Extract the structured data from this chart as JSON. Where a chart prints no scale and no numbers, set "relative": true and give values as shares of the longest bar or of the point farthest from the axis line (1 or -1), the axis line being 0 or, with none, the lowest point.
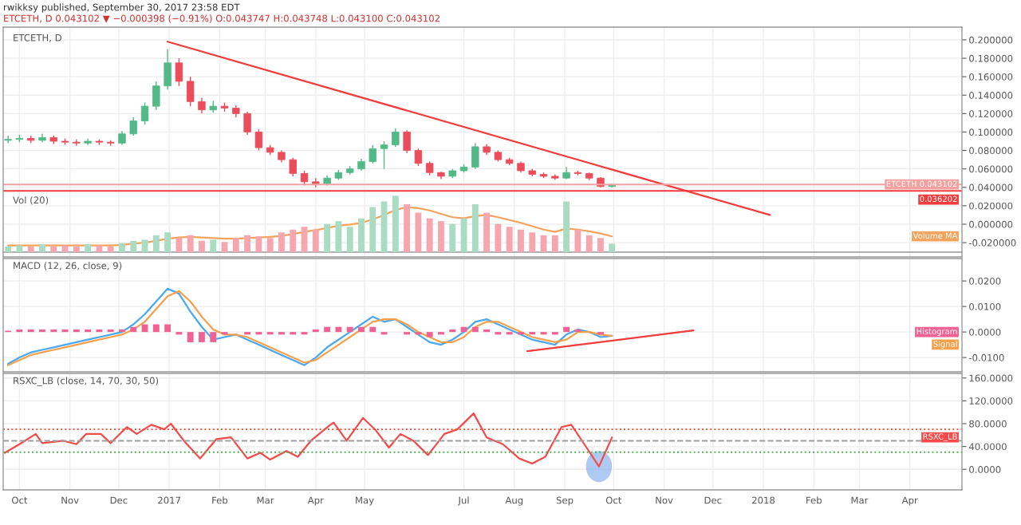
{
  "chart_data": [
    {
      "type": "candlestick",
      "title": "ETCETH, D",
      "annotations": [
        "rwikksy published, September 30, 2017 23:58 EDT",
        "ETCETH, D 0.043102 ▼ −0.000398 (−0.91%) O:0.043747 H:0.043748 L:0.043100 C:0.043102"
      ],
      "x": [
        "2016-09-24",
        "2016-10-01",
        "2016-10-08",
        "2016-10-15",
        "2016-10-22",
        "2016-10-29",
        "2016-11-05",
        "2016-11-12",
        "2016-11-19",
        "2016-11-26",
        "2016-12-03",
        "2016-12-10",
        "2016-12-17",
        "2016-12-24",
        "2016-12-31",
        "2017-01-07",
        "2017-01-14",
        "2017-01-21",
        "2017-01-28",
        "2017-02-04",
        "2017-02-11",
        "2017-02-18",
        "2017-02-25",
        "2017-03-04",
        "2017-03-11",
        "2017-03-18",
        "2017-03-25",
        "2017-04-01",
        "2017-04-08",
        "2017-04-15",
        "2017-04-22",
        "2017-04-29",
        "2017-05-06",
        "2017-05-13",
        "2017-05-20",
        "2017-05-27",
        "2017-06-03",
        "2017-06-10",
        "2017-06-17",
        "2017-06-24",
        "2017-07-01",
        "2017-07-08",
        "2017-07-15",
        "2017-07-22",
        "2017-07-29",
        "2017-08-05",
        "2017-08-12",
        "2017-08-19",
        "2017-08-26",
        "2017-09-02",
        "2017-09-09",
        "2017-09-16",
        "2017-09-23",
        "2017-09-30"
      ],
      "ohlc": [
        [
          0.091,
          0.096,
          0.088,
          0.092
        ],
        [
          0.092,
          0.097,
          0.089,
          0.093
        ],
        [
          0.093,
          0.096,
          0.088,
          0.091
        ],
        [
          0.091,
          0.098,
          0.089,
          0.094
        ],
        [
          0.094,
          0.096,
          0.087,
          0.09
        ],
        [
          0.09,
          0.093,
          0.086,
          0.089
        ],
        [
          0.089,
          0.092,
          0.085,
          0.088
        ],
        [
          0.088,
          0.093,
          0.086,
          0.09
        ],
        [
          0.09,
          0.092,
          0.086,
          0.089
        ],
        [
          0.089,
          0.091,
          0.085,
          0.088
        ],
        [
          0.088,
          0.101,
          0.086,
          0.098
        ],
        [
          0.098,
          0.116,
          0.096,
          0.112
        ],
        [
          0.112,
          0.132,
          0.108,
          0.128
        ],
        [
          0.128,
          0.155,
          0.124,
          0.15
        ],
        [
          0.15,
          0.19,
          0.146,
          0.175
        ],
        [
          0.175,
          0.18,
          0.15,
          0.155
        ],
        [
          0.155,
          0.16,
          0.128,
          0.133
        ],
        [
          0.133,
          0.137,
          0.12,
          0.124
        ],
        [
          0.124,
          0.134,
          0.121,
          0.128
        ],
        [
          0.128,
          0.132,
          0.122,
          0.126
        ],
        [
          0.126,
          0.129,
          0.116,
          0.12
        ],
        [
          0.12,
          0.122,
          0.097,
          0.1
        ],
        [
          0.1,
          0.103,
          0.08,
          0.083
        ],
        [
          0.083,
          0.086,
          0.075,
          0.078
        ],
        [
          0.078,
          0.08,
          0.067,
          0.07
        ],
        [
          0.07,
          0.072,
          0.052,
          0.055
        ],
        [
          0.055,
          0.058,
          0.042,
          0.046
        ],
        [
          0.046,
          0.05,
          0.04,
          0.044
        ],
        [
          0.044,
          0.053,
          0.042,
          0.05
        ],
        [
          0.05,
          0.059,
          0.048,
          0.056
        ],
        [
          0.056,
          0.063,
          0.054,
          0.06
        ],
        [
          0.06,
          0.071,
          0.058,
          0.068
        ],
        [
          0.068,
          0.086,
          0.066,
          0.082
        ],
        [
          0.082,
          0.09,
          0.06,
          0.086
        ],
        [
          0.086,
          0.104,
          0.084,
          0.1
        ],
        [
          0.1,
          0.102,
          0.077,
          0.08
        ],
        [
          0.08,
          0.082,
          0.063,
          0.066
        ],
        [
          0.066,
          0.068,
          0.053,
          0.056
        ],
        [
          0.056,
          0.057,
          0.049,
          0.052
        ],
        [
          0.052,
          0.06,
          0.05,
          0.058
        ],
        [
          0.058,
          0.065,
          0.056,
          0.062
        ],
        [
          0.062,
          0.088,
          0.06,
          0.084
        ],
        [
          0.084,
          0.087,
          0.075,
          0.078
        ],
        [
          0.078,
          0.08,
          0.068,
          0.07
        ],
        [
          0.07,
          0.072,
          0.064,
          0.066
        ],
        [
          0.066,
          0.068,
          0.056,
          0.058
        ],
        [
          0.058,
          0.06,
          0.052,
          0.054
        ],
        [
          0.054,
          0.056,
          0.05,
          0.052
        ],
        [
          0.052,
          0.054,
          0.048,
          0.05
        ],
        [
          0.05,
          0.062,
          0.049,
          0.056
        ],
        [
          0.056,
          0.058,
          0.053,
          0.055
        ],
        [
          0.055,
          0.056,
          0.048,
          0.05
        ],
        [
          0.05,
          0.051,
          0.04,
          0.041
        ],
        [
          0.041,
          0.044,
          0.04,
          0.0431
        ]
      ],
      "colors": [
        "#53b987",
        "#53b987",
        "#eb4d5c",
        "#53b987",
        "#eb4d5c",
        "#eb4d5c",
        "#eb4d5c",
        "#53b987",
        "#eb4d5c",
        "#eb4d5c",
        "#53b987",
        "#53b987",
        "#53b987",
        "#53b987",
        "#53b987",
        "#eb4d5c",
        "#eb4d5c",
        "#eb4d5c",
        "#53b987",
        "#eb4d5c",
        "#eb4d5c",
        "#eb4d5c",
        "#eb4d5c",
        "#eb4d5c",
        "#eb4d5c",
        "#eb4d5c",
        "#eb4d5c",
        "#eb4d5c",
        "#53b987",
        "#53b987",
        "#53b987",
        "#53b987",
        "#53b987",
        "#53b987",
        "#53b987",
        "#eb4d5c",
        "#eb4d5c",
        "#eb4d5c",
        "#eb4d5c",
        "#53b987",
        "#53b987",
        "#53b987",
        "#eb4d5c",
        "#eb4d5c",
        "#eb4d5c",
        "#eb4d5c",
        "#eb4d5c",
        "#eb4d5c",
        "#eb4d5c",
        "#53b987",
        "#eb4d5c",
        "#eb4d5c",
        "#eb4d5c",
        "#53b987"
      ],
      "series": [
        {
          "type": "line",
          "color": "#f23c3c",
          "x": [
            "2016-12-31",
            "2018-01-05"
          ],
          "values": [
            0.198,
            0.01
          ]
        }
      ],
      "ref_lines": [
        {
          "axis": "y",
          "value": 0.043102,
          "label": "ETCETH 0.043102",
          "color": "#f4a0a0",
          "line_style": "solid"
        },
        {
          "axis": "y",
          "value": 0.036202,
          "label": "0.036202",
          "color": "#f23c3c",
          "line_style": "solid"
        }
      ],
      "xlim": [
        "2016-09-21",
        "2018-05-03"
      ],
      "ylim": [
        -0.0355,
        0.2138
      ],
      "yticks": [
        {
          "value": 0.2,
          "label": "0.200000"
        },
        {
          "value": 0.18,
          "label": "0.180000"
        },
        {
          "value": 0.16,
          "label": "0.160000"
        },
        {
          "value": 0.14,
          "label": "0.140000"
        },
        {
          "value": 0.12,
          "label": "0.120000"
        },
        {
          "value": 0.1,
          "label": "0.100000"
        },
        {
          "value": 0.08,
          "label": "0.080000"
        },
        {
          "value": 0.06,
          "label": "0.060000"
        },
        {
          "value": 0.04,
          "label": "0.040000"
        },
        {
          "value": 0.02,
          "label": "0.020000"
        },
        {
          "value": 0,
          "label": "0.000000"
        },
        {
          "value": -0.02,
          "label": "-0.020000"
        }
      ],
      "grid": true,
      "tick_labels": "y"
    },
    {
      "type": "bar",
      "title": "Vol (20)",
      "relative": true,
      "x": [
        "2016-09-24",
        "2016-10-01",
        "2016-10-08",
        "2016-10-15",
        "2016-10-22",
        "2016-10-29",
        "2016-11-05",
        "2016-11-12",
        "2016-11-19",
        "2016-11-26",
        "2016-12-03",
        "2016-12-10",
        "2016-12-17",
        "2016-12-24",
        "2016-12-31",
        "2017-01-07",
        "2017-01-14",
        "2017-01-21",
        "2017-01-28",
        "2017-02-04",
        "2017-02-11",
        "2017-02-18",
        "2017-02-25",
        "2017-03-04",
        "2017-03-11",
        "2017-03-18",
        "2017-03-25",
        "2017-04-01",
        "2017-04-08",
        "2017-04-15",
        "2017-04-22",
        "2017-04-29",
        "2017-05-06",
        "2017-05-13",
        "2017-05-20",
        "2017-05-27",
        "2017-06-03",
        "2017-06-10",
        "2017-06-17",
        "2017-06-24",
        "2017-07-01",
        "2017-07-08",
        "2017-07-15",
        "2017-07-22",
        "2017-07-29",
        "2017-08-05",
        "2017-08-12",
        "2017-08-19",
        "2017-08-26",
        "2017-09-02",
        "2017-09-09",
        "2017-09-16",
        "2017-09-23",
        "2017-09-30"
      ],
      "series": [
        {
          "type": "bar",
          "colors": [
            "#a9dcc3",
            "#a9dcc3",
            "#f5a6ae",
            "#a9dcc3",
            "#f5a6ae",
            "#f5a6ae",
            "#f5a6ae",
            "#a9dcc3",
            "#f5a6ae",
            "#f5a6ae",
            "#a9dcc3",
            "#a9dcc3",
            "#a9dcc3",
            "#a9dcc3",
            "#a9dcc3",
            "#f5a6ae",
            "#f5a6ae",
            "#f5a6ae",
            "#a9dcc3",
            "#f5a6ae",
            "#f5a6ae",
            "#f5a6ae",
            "#f5a6ae",
            "#f5a6ae",
            "#f5a6ae",
            "#f5a6ae",
            "#f5a6ae",
            "#f5a6ae",
            "#a9dcc3",
            "#a9dcc3",
            "#a9dcc3",
            "#a9dcc3",
            "#a9dcc3",
            "#a9dcc3",
            "#a9dcc3",
            "#f5a6ae",
            "#f5a6ae",
            "#f5a6ae",
            "#f5a6ae",
            "#a9dcc3",
            "#a9dcc3",
            "#a9dcc3",
            "#f5a6ae",
            "#f5a6ae",
            "#f5a6ae",
            "#f5a6ae",
            "#f5a6ae",
            "#f5a6ae",
            "#f5a6ae",
            "#a9dcc3",
            "#f5a6ae",
            "#f5a6ae",
            "#f5a6ae",
            "#a9dcc3"
          ],
          "values": [
            0.1,
            0.12,
            0.1,
            0.14,
            0.1,
            0.12,
            0.1,
            0.14,
            0.12,
            0.1,
            0.16,
            0.2,
            0.22,
            0.3,
            0.35,
            0.25,
            0.3,
            0.2,
            0.22,
            0.18,
            0.25,
            0.3,
            0.28,
            0.25,
            0.35,
            0.4,
            0.45,
            0.4,
            0.5,
            0.55,
            0.45,
            0.6,
            0.8,
            0.9,
            1.0,
            0.85,
            0.7,
            0.6,
            0.55,
            0.5,
            0.6,
            0.85,
            0.7,
            0.5,
            0.45,
            0.4,
            0.35,
            0.3,
            0.3,
            0.9,
            0.4,
            0.3,
            0.25,
            0.15
          ]
        },
        {
          "type": "line",
          "name": "Volume MA",
          "color": "#f5a25d",
          "values": [
            0.12,
            0.12,
            0.12,
            0.12,
            0.12,
            0.12,
            0.12,
            0.12,
            0.12,
            0.12,
            0.13,
            0.15,
            0.17,
            0.2,
            0.24,
            0.26,
            0.27,
            0.26,
            0.25,
            0.24,
            0.24,
            0.25,
            0.26,
            0.27,
            0.29,
            0.32,
            0.36,
            0.39,
            0.43,
            0.47,
            0.49,
            0.52,
            0.58,
            0.66,
            0.75,
            0.8,
            0.78,
            0.74,
            0.68,
            0.62,
            0.6,
            0.64,
            0.66,
            0.62,
            0.57,
            0.52,
            0.46,
            0.4,
            0.36,
            0.42,
            0.4,
            0.37,
            0.33,
            0.28
          ]
        }
      ],
      "xlim": [
        "2016-09-21",
        "2018-05-03"
      ],
      "tick_labels": false
    },
    {
      "type": "line",
      "title": "MACD (12, 26, close, 9)",
      "x": [
        "2016-09-24",
        "2016-10-01",
        "2016-10-08",
        "2016-10-15",
        "2016-10-22",
        "2016-10-29",
        "2016-11-05",
        "2016-11-12",
        "2016-11-19",
        "2016-11-26",
        "2016-12-03",
        "2016-12-10",
        "2016-12-17",
        "2016-12-24",
        "2016-12-31",
        "2017-01-07",
        "2017-01-14",
        "2017-01-21",
        "2017-01-28",
        "2017-02-04",
        "2017-02-11",
        "2017-02-18",
        "2017-02-25",
        "2017-03-04",
        "2017-03-11",
        "2017-03-18",
        "2017-03-25",
        "2017-04-01",
        "2017-04-08",
        "2017-04-15",
        "2017-04-22",
        "2017-04-29",
        "2017-05-06",
        "2017-05-13",
        "2017-05-20",
        "2017-05-27",
        "2017-06-03",
        "2017-06-10",
        "2017-06-17",
        "2017-06-24",
        "2017-07-01",
        "2017-07-08",
        "2017-07-15",
        "2017-07-22",
        "2017-07-29",
        "2017-08-05",
        "2017-08-12",
        "2017-08-19",
        "2017-08-26",
        "2017-09-02",
        "2017-09-09",
        "2017-09-16",
        "2017-09-23",
        "2017-09-30"
      ],
      "series": [
        {
          "type": "bar",
          "name": "Histogram",
          "color": "#f06292",
          "values": [
            0.0005,
            0.001,
            0.001,
            0.001,
            0.001,
            0.001,
            0.001,
            0.001,
            0.001,
            0.001,
            0.001,
            0.002,
            0.003,
            0.003,
            0.003,
            -0.001,
            -0.004,
            -0.004,
            -0.004,
            -0.001,
            0.0,
            -0.001,
            -0.001,
            -0.001,
            -0.001,
            -0.001,
            -0.001,
            0.001,
            0.002,
            0.002,
            0.002,
            0.002,
            0.002,
            -0.001,
            0.0,
            -0.001,
            -0.001,
            -0.002,
            -0.001,
            0.001,
            0.002,
            0.002,
            0.001,
            -0.001,
            -0.001,
            -0.001,
            -0.001,
            -0.001,
            -0.001,
            0.002,
            0.001,
            0.0,
            -0.001,
            0.0
          ]
        },
        {
          "type": "line",
          "color": "#4aa8f0",
          "values": [
            -0.0125,
            -0.01,
            -0.008,
            -0.007,
            -0.006,
            -0.005,
            -0.004,
            -0.003,
            -0.002,
            -0.001,
            0.0,
            0.003,
            0.007,
            0.012,
            0.017,
            0.015,
            0.008,
            0.002,
            -0.003,
            -0.002,
            -0.001,
            -0.003,
            -0.005,
            -0.007,
            -0.009,
            -0.011,
            -0.013,
            -0.01,
            -0.006,
            -0.003,
            0.0,
            0.003,
            0.006,
            0.004,
            0.005,
            0.002,
            -0.001,
            -0.004,
            -0.005,
            -0.003,
            0.0,
            0.004,
            0.005,
            0.003,
            0.001,
            -0.001,
            -0.003,
            -0.004,
            -0.005,
            -0.001,
            0.001,
            0.0,
            -0.002,
            -0.0015
          ]
        },
        {
          "type": "line",
          "name": "Signal",
          "color": "#f5a04a",
          "values": [
            -0.013,
            -0.011,
            -0.009,
            -0.008,
            -0.007,
            -0.006,
            -0.005,
            -0.004,
            -0.003,
            -0.002,
            -0.001,
            0.001,
            0.004,
            0.009,
            0.014,
            0.016,
            0.012,
            0.006,
            0.001,
            -0.001,
            -0.001,
            -0.002,
            -0.004,
            -0.006,
            -0.008,
            -0.01,
            -0.012,
            -0.011,
            -0.008,
            -0.005,
            -0.002,
            0.001,
            0.004,
            0.005,
            0.005,
            0.003,
            0.0,
            -0.002,
            -0.004,
            -0.004,
            -0.002,
            0.002,
            0.004,
            0.004,
            0.002,
            0.0,
            -0.002,
            -0.003,
            -0.004,
            -0.003,
            0.0,
            0.0,
            -0.001,
            -0.0015
          ]
        },
        {
          "type": "line",
          "color": "#f23c3c",
          "x": [
            "2017-08-09",
            "2017-11-19"
          ],
          "values": [
            -0.0075,
            0.0006
          ]
        }
      ],
      "xlim": [
        "2016-09-21",
        "2018-05-03"
      ],
      "ylim": [
        -0.0156,
        0.0288
      ],
      "yticks": [
        {
          "value": 0.02,
          "label": "0.0200"
        },
        {
          "value": 0.01,
          "label": "0.0100"
        },
        {
          "value": 0,
          "label": "0.0000"
        },
        {
          "value": -0.01,
          "label": "-0.0100"
        }
      ],
      "grid": true,
      "tick_labels": "y"
    },
    {
      "type": "line",
      "title": "RSXC_LB (close, 14, 70, 30, 50)",
      "series": [
        {
          "type": "line",
          "name": "RSXC_LB",
          "color": "#f44a4a",
          "x": [
            "2016-09-22",
            "2016-10-01",
            "2016-10-11",
            "2016-10-15",
            "2016-10-28",
            "2016-11-05",
            "2016-11-11",
            "2016-11-20",
            "2016-11-26",
            "2016-12-06",
            "2016-12-12",
            "2016-12-21",
            "2016-12-29",
            "2017-01-02",
            "2017-01-10",
            "2017-01-20",
            "2017-01-30",
            "2017-02-08",
            "2017-02-18",
            "2017-02-26",
            "2017-03-04",
            "2017-03-14",
            "2017-03-21",
            "2017-03-29",
            "2017-04-10",
            "2017-04-12",
            "2017-04-20",
            "2017-04-30",
            "2017-05-08",
            "2017-05-16",
            "2017-05-23",
            "2017-05-31",
            "2017-06-09",
            "2017-06-19",
            "2017-06-27",
            "2017-07-07",
            "2017-07-15",
            "2017-07-25",
            "2017-08-04",
            "2017-08-12",
            "2017-08-20",
            "2017-08-30",
            "2017-09-05",
            "2017-09-13",
            "2017-09-22",
            "2017-09-30"
          ],
          "values": [
            29,
            44,
            62,
            46,
            50,
            44,
            62,
            62,
            46,
            74,
            62,
            78,
            70,
            80,
            50,
            19,
            53,
            56,
            19,
            29,
            17,
            32,
            22,
            50,
            78,
            82,
            50,
            90,
            68,
            38,
            62,
            50,
            25,
            62,
            70,
            98,
            56,
            44,
            19,
            10,
            22,
            74,
            78,
            44,
            5,
            56
          ]
        }
      ],
      "ref_lines": [
        {
          "axis": "y",
          "value": 70,
          "color": "#f44336",
          "line_style": "dotted"
        },
        {
          "axis": "y",
          "value": 50,
          "color": "#9e9e9e",
          "line_style": "dashed"
        },
        {
          "axis": "y",
          "value": 30,
          "color": "#4caf50",
          "line_style": "dotted"
        }
      ],
      "xlim": [
        "2016-09-21",
        "2018-05-03"
      ],
      "xticks": [
        {
          "value": "2016-10-01",
          "label": "Oct"
        },
        {
          "value": "2016-11-01",
          "label": "Nov"
        },
        {
          "value": "2016-12-01",
          "label": "Dec"
        },
        {
          "value": "2017-01-01",
          "label": "2017"
        },
        {
          "value": "2017-02-01",
          "label": "Feb"
        },
        {
          "value": "2017-03-01",
          "label": "Mar"
        },
        {
          "value": "2017-04-01",
          "label": "Apr"
        },
        {
          "value": "2017-05-01",
          "label": "May"
        },
        {
          "value": "2017-07-01",
          "label": "Jul"
        },
        {
          "value": "2017-08-01",
          "label": "Aug"
        },
        {
          "value": "2017-09-01",
          "label": "Sep"
        },
        {
          "value": "2017-10-01",
          "label": "Oct"
        },
        {
          "value": "2017-11-01",
          "label": "Nov"
        },
        {
          "value": "2017-12-01",
          "label": "Dec"
        },
        {
          "value": "2018-01-01",
          "label": "2018"
        },
        {
          "value": "2018-02-01",
          "label": "Feb"
        },
        {
          "value": "2018-03-01",
          "label": "Mar"
        },
        {
          "value": "2018-04-01",
          "label": "Apr"
        }
      ],
      "ylim": [
        -36,
        168
      ],
      "yticks": [
        {
          "value": 160,
          "label": "160.0000"
        },
        {
          "value": 120,
          "label": "120.0000"
        },
        {
          "value": 80,
          "label": "80.0000"
        },
        {
          "value": 40,
          "label": "40.0000"
        },
        {
          "value": 0,
          "label": "0.0000"
        }
      ],
      "grid": true
    }
  ]
}
